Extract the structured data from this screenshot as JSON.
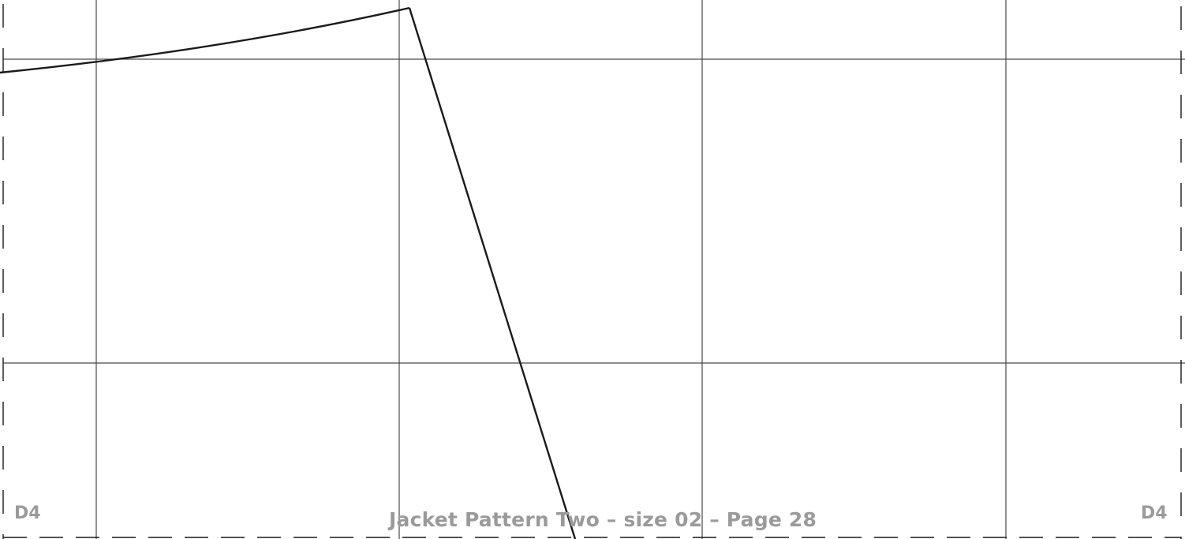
{
  "page": {
    "corner_label_left": "D4",
    "corner_label_right": "D4",
    "footer": "Jacket Pattern Two – size 02 – Page 28"
  },
  "colors": {
    "grid_line": "#4a4a4a",
    "pattern_line": "#1a1a1a",
    "label_text": "#9a9a9a",
    "background": "#ffffff"
  }
}
